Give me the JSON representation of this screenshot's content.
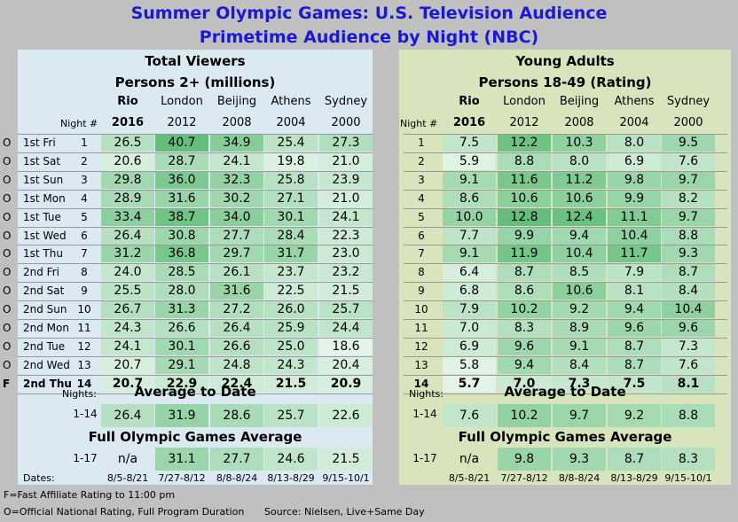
{
  "title1": "Summer Olympic Games: U.S. Television Audience",
  "title2": "Primetime Audience by Night (NBC)",
  "left": {
    "title": "Total Viewers",
    "subtitle": "Persons 2+ (millions)",
    "avg_title": "Average to Date",
    "full_title": "Full Olympic Games Average"
  },
  "right": {
    "title": "Young Adults",
    "subtitle": "Persons 18-49 (Rating)",
    "avg_title": "Average to Date",
    "full_title": "Full Olympic Games Average"
  },
  "games": [
    {
      "city": "Rio",
      "year": "2016",
      "dates": "8/5-8/21"
    },
    {
      "city": "London",
      "year": "2012",
      "dates": "7/27-8/12"
    },
    {
      "city": "Beijing",
      "year": "2008",
      "dates": "8/8-8/24"
    },
    {
      "city": "Athens",
      "year": "2004",
      "dates": "8/13-8/29"
    },
    {
      "city": "Sydney",
      "year": "2000",
      "dates": "9/15-10/1"
    }
  ],
  "labels": {
    "night_hash": "Night #",
    "nights": "Nights:",
    "range_avg": "1-14",
    "range_full": "1-17",
    "dates": "Dates:"
  },
  "footnotes": {
    "f": "F=Fast Affiliate Rating to 11:00 pm",
    "o": "O=Official National Rating, Full Program Duration",
    "source": "Source:  Nielsen, Live+Same Day"
  },
  "colors": {
    "title": "#1a1ad4",
    "left_panel": "#dbeaf2",
    "right_panel": "#d8e4bc",
    "background": "#c0c0c0",
    "scale_low": "#ffffff",
    "scale_high": "#63be7b"
  },
  "chart_data": [
    {
      "type": "table",
      "title": "Total Viewers",
      "subtitle": "Persons 2+ (millions)",
      "columns": [
        "Rio 2016",
        "London 2012",
        "Beijing 2008",
        "Athens 2004",
        "Sydney 2000"
      ],
      "rows": [
        {
          "flag": "O",
          "day": "1st Fri",
          "night": "1",
          "values": [
            "26.5",
            "40.7",
            "34.9",
            "25.4",
            "27.3"
          ]
        },
        {
          "flag": "O",
          "day": "1st Sat",
          "night": "2",
          "values": [
            "20.6",
            "28.7",
            "24.1",
            "19.8",
            "21.0"
          ]
        },
        {
          "flag": "O",
          "day": "1st Sun",
          "night": "3",
          "values": [
            "29.8",
            "36.0",
            "32.3",
            "25.8",
            "23.9"
          ]
        },
        {
          "flag": "O",
          "day": "1st Mon",
          "night": "4",
          "values": [
            "28.9",
            "31.6",
            "30.2",
            "27.1",
            "21.0"
          ]
        },
        {
          "flag": "O",
          "day": "1st Tue",
          "night": "5",
          "values": [
            "33.4",
            "38.7",
            "34.0",
            "30.1",
            "24.1"
          ]
        },
        {
          "flag": "O",
          "day": "1st Wed",
          "night": "6",
          "values": [
            "26.4",
            "30.8",
            "27.7",
            "28.4",
            "22.3"
          ]
        },
        {
          "flag": "O",
          "day": "1st Thu",
          "night": "7",
          "values": [
            "31.2",
            "36.8",
            "29.7",
            "31.7",
            "23.0"
          ]
        },
        {
          "flag": "O",
          "day": "2nd Fri",
          "night": "8",
          "values": [
            "24.0",
            "28.5",
            "26.1",
            "23.7",
            "23.2"
          ]
        },
        {
          "flag": "O",
          "day": "2nd Sat",
          "night": "9",
          "values": [
            "25.5",
            "28.0",
            "31.6",
            "22.5",
            "21.5"
          ]
        },
        {
          "flag": "O",
          "day": "2nd Sun",
          "night": "10",
          "values": [
            "26.7",
            "31.3",
            "27.2",
            "26.0",
            "25.7"
          ]
        },
        {
          "flag": "O",
          "day": "2nd Mon",
          "night": "11",
          "values": [
            "24.3",
            "26.6",
            "26.4",
            "25.9",
            "24.4"
          ]
        },
        {
          "flag": "O",
          "day": "2nd Tue",
          "night": "12",
          "values": [
            "24.1",
            "30.1",
            "26.6",
            "25.0",
            "18.6"
          ]
        },
        {
          "flag": "O",
          "day": "2nd Wed",
          "night": "13",
          "values": [
            "20.7",
            "29.1",
            "24.8",
            "24.3",
            "20.4"
          ]
        },
        {
          "flag": "F",
          "day": "2nd Thu",
          "night": "14",
          "values": [
            "20.7",
            "22.9",
            "22.4",
            "21.5",
            "20.9"
          ]
        }
      ],
      "avg_to_date": [
        "26.4",
        "31.9",
        "28.6",
        "25.7",
        "22.6"
      ],
      "full_average": [
        "n/a",
        "31.1",
        "27.7",
        "24.6",
        "21.5"
      ]
    },
    {
      "type": "table",
      "title": "Young Adults",
      "subtitle": "Persons 18-49 (Rating)",
      "columns": [
        "Rio 2016",
        "London 2012",
        "Beijing 2008",
        "Athens 2004",
        "Sydney 2000"
      ],
      "rows": [
        {
          "night": "1",
          "values": [
            "7.5",
            "12.2",
            "10.3",
            "8.0",
            "9.5"
          ]
        },
        {
          "night": "2",
          "values": [
            "5.9",
            "8.8",
            "8.0",
            "6.9",
            "7.6"
          ]
        },
        {
          "night": "3",
          "values": [
            "9.1",
            "11.6",
            "11.2",
            "9.8",
            "9.7"
          ]
        },
        {
          "night": "4",
          "values": [
            "8.6",
            "10.6",
            "10.6",
            "9.9",
            "8.2"
          ]
        },
        {
          "night": "5",
          "values": [
            "10.0",
            "12.8",
            "12.4",
            "11.1",
            "9.7"
          ]
        },
        {
          "night": "6",
          "values": [
            "7.7",
            "9.9",
            "9.4",
            "10.4",
            "8.8"
          ]
        },
        {
          "night": "7",
          "values": [
            "9.1",
            "11.9",
            "10.4",
            "11.7",
            "9.3"
          ]
        },
        {
          "night": "8",
          "values": [
            "6.4",
            "8.7",
            "8.5",
            "7.9",
            "8.7"
          ]
        },
        {
          "night": "9",
          "values": [
            "6.8",
            "8.6",
            "10.6",
            "8.1",
            "8.4"
          ]
        },
        {
          "night": "10",
          "values": [
            "7.9",
            "10.2",
            "9.2",
            "9.4",
            "10.4"
          ]
        },
        {
          "night": "11",
          "values": [
            "7.0",
            "8.3",
            "8.9",
            "9.6",
            "9.6"
          ]
        },
        {
          "night": "12",
          "values": [
            "6.9",
            "9.6",
            "9.1",
            "8.7",
            "7.3"
          ]
        },
        {
          "night": "13",
          "values": [
            "5.8",
            "9.4",
            "8.4",
            "8.7",
            "7.6"
          ]
        },
        {
          "night": "14",
          "values": [
            "5.7",
            "7.0",
            "7.3",
            "7.5",
            "8.1"
          ]
        }
      ],
      "avg_to_date": [
        "7.6",
        "10.2",
        "9.7",
        "9.2",
        "8.8"
      ],
      "full_average": [
        "n/a",
        "9.8",
        "9.3",
        "8.7",
        "8.3"
      ]
    }
  ]
}
